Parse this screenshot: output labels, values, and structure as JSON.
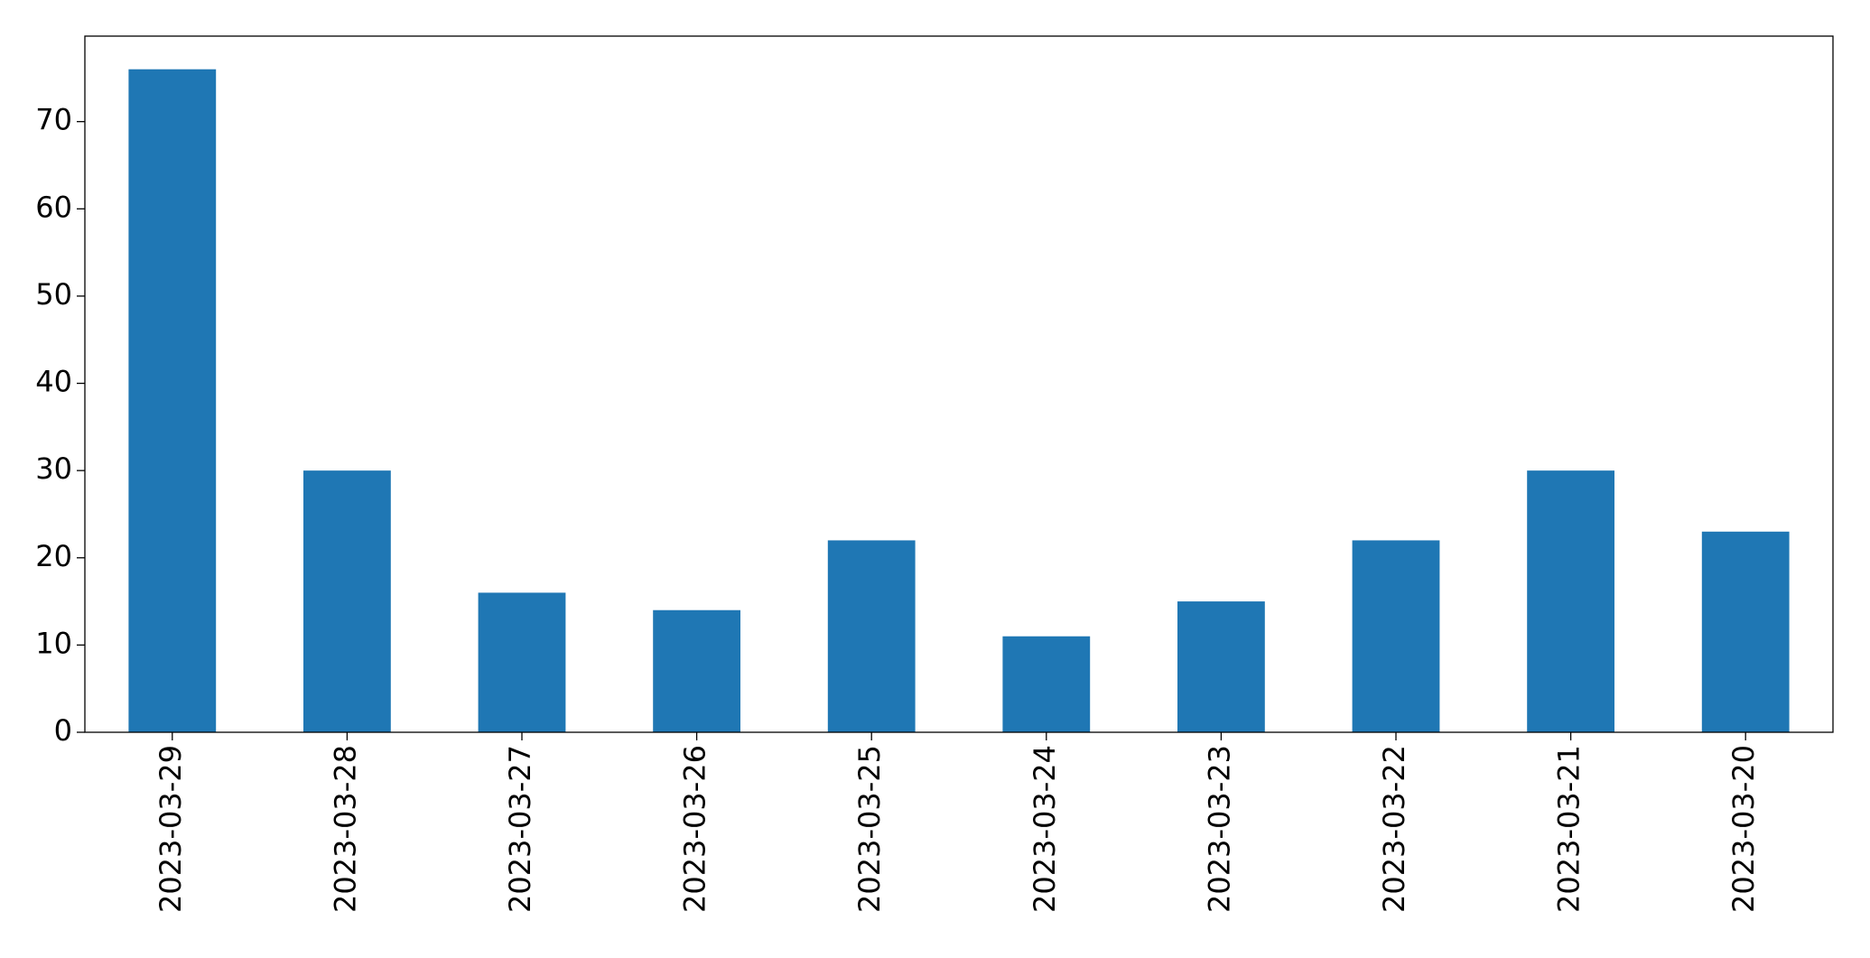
{
  "chart_data": {
    "type": "bar",
    "categories": [
      "2023-03-29",
      "2023-03-28",
      "2023-03-27",
      "2023-03-26",
      "2023-03-25",
      "2023-03-24",
      "2023-03-23",
      "2023-03-22",
      "2023-03-21",
      "2023-03-20"
    ],
    "values": [
      76,
      30,
      16,
      14,
      22,
      11,
      15,
      22,
      30,
      23
    ],
    "color": "#1f77b4",
    "ylim": [
      0,
      79.8
    ],
    "yticks": [
      0,
      10,
      20,
      30,
      40,
      50,
      60,
      70
    ],
    "grid": false
  }
}
